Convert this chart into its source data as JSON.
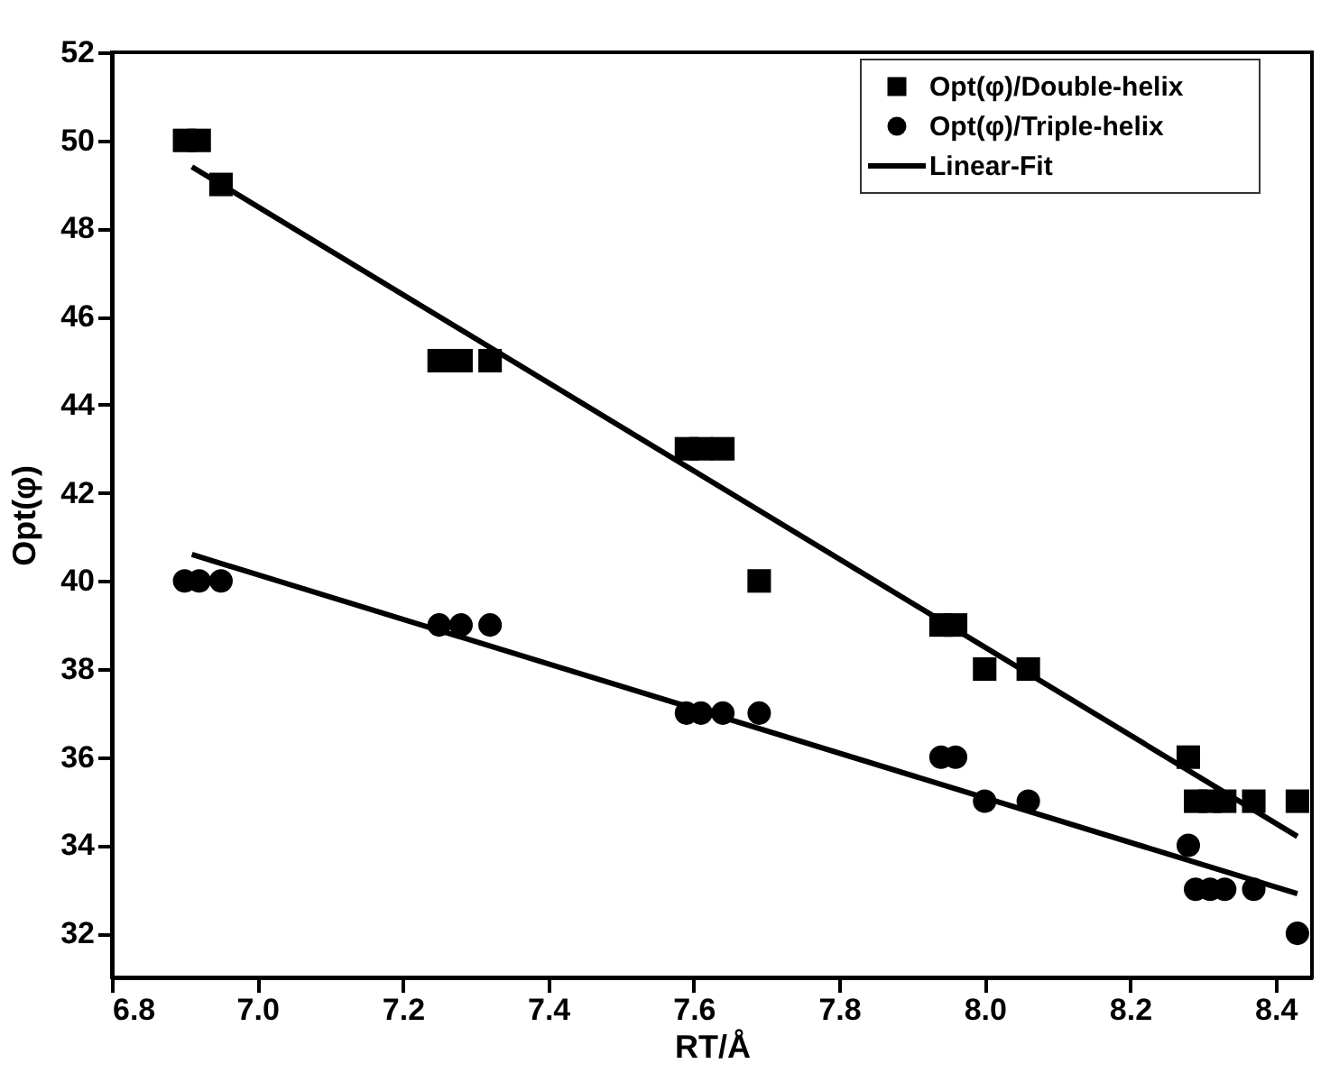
{
  "chart_data": {
    "type": "scatter",
    "xlabel": "RT/Å",
    "ylabel": "Opt(φ)",
    "xlim": [
      6.8,
      8.45
    ],
    "xticks": [
      6.8,
      {
        "value": 7.0,
        "label": "7.0"
      },
      7.2,
      7.4,
      7.6,
      7.8,
      {
        "value": 8.0,
        "label": "8.0"
      },
      8.2,
      8.4
    ],
    "ylim": [
      31,
      52
    ],
    "yticks": [
      32,
      34,
      36,
      38,
      40,
      42,
      44,
      46,
      48,
      50,
      52
    ],
    "grid": false,
    "legend": "top right",
    "series": [
      {
        "name": "Opt(φ)/Double-helix",
        "marker": "square",
        "color": "#000000",
        "x": [
          6.9,
          6.92,
          6.95,
          7.25,
          7.28,
          7.32,
          7.59,
          7.61,
          7.64,
          7.69,
          7.94,
          7.96,
          8.0,
          8.06,
          8.28,
          8.29,
          8.31,
          8.33,
          8.37,
          8.43
        ],
        "values": [
          50,
          50,
          49,
          45,
          45,
          45,
          43,
          43,
          43,
          40,
          39,
          39,
          38,
          38,
          36,
          35,
          35,
          35,
          35,
          35
        ]
      },
      {
        "name": "Opt(φ)/Triple-helix",
        "marker": "circle",
        "color": "#000000",
        "x": [
          6.9,
          6.92,
          6.95,
          7.25,
          7.28,
          7.32,
          7.59,
          7.61,
          7.64,
          7.69,
          7.94,
          7.96,
          8.0,
          8.06,
          8.28,
          8.29,
          8.31,
          8.33,
          8.37,
          8.43
        ],
        "values": [
          40,
          40,
          40,
          39,
          39,
          39,
          37,
          37,
          37,
          37,
          36,
          36,
          35,
          35,
          34,
          33,
          33,
          33,
          33,
          32
        ]
      },
      {
        "name": "Linear-Fit",
        "type": "line",
        "line_style": "solid",
        "color": "#000000",
        "x": [
          6.91,
          8.43
        ],
        "values": [
          49.4,
          34.2
        ]
      },
      {
        "type": "line",
        "line_style": "solid",
        "color": "#000000",
        "x": [
          6.91,
          8.43
        ],
        "values": [
          40.6,
          32.9
        ]
      }
    ]
  }
}
